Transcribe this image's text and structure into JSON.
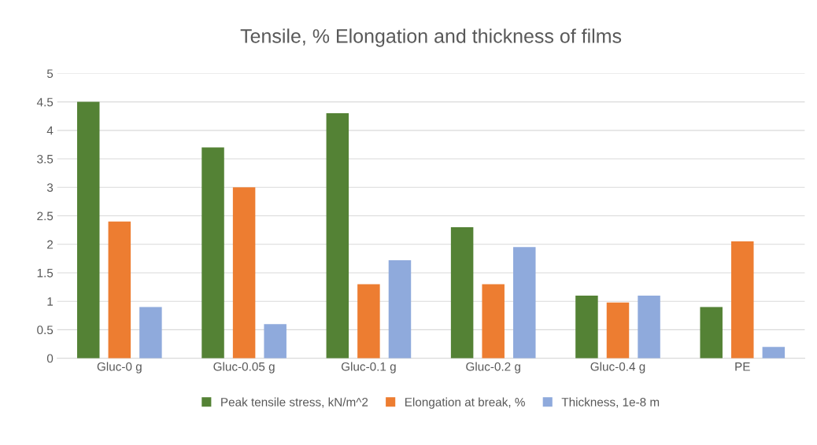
{
  "chart_data": {
    "type": "bar",
    "title": "Tensile, % Elongation and thickness of films",
    "categories": [
      "Gluc-0 g",
      "Gluc-0.05 g",
      "Gluc-0.1 g",
      "Gluc-0.2 g",
      "Gluc-0.4 g",
      "PE"
    ],
    "series": [
      {
        "name": "Peak tensile stress, kN/m^2",
        "color": "#548235",
        "values": [
          4.5,
          3.7,
          4.3,
          2.3,
          1.1,
          0.9
        ]
      },
      {
        "name": "Elongation at break, %",
        "color": "#ed7d31",
        "values": [
          2.4,
          3.0,
          1.3,
          1.3,
          0.98,
          2.05
        ]
      },
      {
        "name": "Thickness, 1e-8 m",
        "color": "#8faadc",
        "values": [
          0.9,
          0.6,
          1.72,
          1.95,
          1.1,
          0.2
        ]
      }
    ],
    "ylim": [
      0,
      5
    ],
    "yticks": [
      0,
      0.5,
      1,
      1.5,
      2,
      2.5,
      3,
      3.5,
      4,
      4.5,
      5
    ],
    "grid": "y",
    "legend": "bottom"
  }
}
